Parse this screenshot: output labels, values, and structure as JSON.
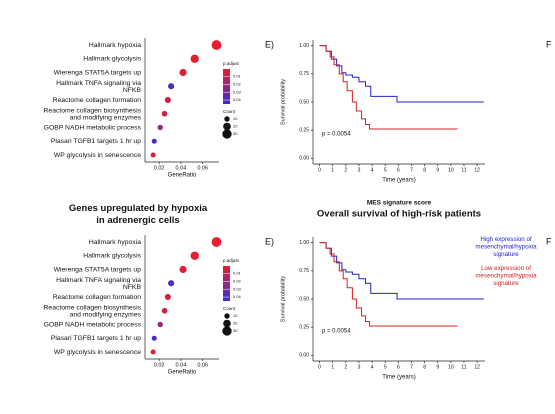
{
  "chart_data": [
    {
      "type": "dot",
      "categories": [
        "Hallmark hypoxia",
        "Hallmark glycolysis",
        "Wierenga STAT5A targets up",
        "Hallmark TNFA signaling via\nNFKB",
        "Reactome collagen formation",
        "Reactome collagen biosynthesis\nand modifying enzymes",
        "GOBP NADH metabolic process",
        "Plasari TGFB1 targets 1 hr up",
        "WP glycolysis in senescence"
      ],
      "values": [
        0.0727,
        0.0527,
        0.042,
        0.031,
        0.028,
        0.025,
        0.021,
        0.0155,
        0.0145
      ],
      "sizes": [
        33,
        24,
        18,
        13,
        13,
        11,
        10,
        9,
        9
      ],
      "padj": [
        0.001,
        0.002,
        0.004,
        0.04,
        0.006,
        0.007,
        0.022,
        0.044,
        0.004
      ],
      "xlabel": "GeneRatio",
      "xlim": [
        0.007,
        0.075
      ],
      "xticks": [
        0.02,
        0.04,
        0.06
      ],
      "color_legend": {
        "title": "p.adjust",
        "lim": [
          0.0005,
          0.045
        ],
        "ticks": [
          0.01,
          0.02,
          0.03,
          0.04
        ],
        "colors": [
          "#e8202a",
          "#3a2bd6"
        ]
      },
      "size_legend": {
        "title": "Count",
        "ticks": [
          10,
          20,
          30
        ]
      }
    },
    {
      "type": "km",
      "panel_label": "E)",
      "side_label": "F",
      "series": [
        {
          "color": "#2323c8",
          "x": [
            0,
            0.5,
            0.9,
            1.3,
            1.7,
            2.0,
            2.5,
            3.0,
            3.5,
            3.9,
            5.9,
            12.5
          ],
          "values": [
            1,
            0.95,
            0.88,
            0.82,
            0.76,
            0.74,
            0.72,
            0.68,
            0.64,
            0.55,
            0.5,
            0.5
          ]
        },
        {
          "color": "#d42020",
          "x": [
            0,
            0.5,
            0.8,
            1.1,
            1.5,
            1.8,
            2.1,
            2.5,
            2.8,
            3.2,
            3.5,
            3.8,
            10.5
          ],
          "values": [
            1,
            0.95,
            0.9,
            0.83,
            0.75,
            0.68,
            0.6,
            0.5,
            0.42,
            0.35,
            0.3,
            0.26,
            0.26
          ]
        }
      ],
      "xlabel": "Time (years)",
      "ylabel": "Survival probability",
      "annotation": "p = 0.0054",
      "xlim": [
        -0.5,
        12.6
      ],
      "xticks": [
        0,
        1,
        2,
        3,
        4,
        5,
        6,
        7,
        8,
        9,
        10,
        11,
        12
      ],
      "ylim": [
        -0.05,
        1.05
      ],
      "yticks": [
        {
          "value": 0,
          "label": "0.00"
        },
        0.25,
        {
          "value": 0.5,
          "label": "0.50"
        },
        0.75,
        {
          "value": 1,
          "label": "1.00"
        }
      ]
    },
    {
      "type": "dot",
      "title": "Genes upregulated by hypoxia\nin adrenergic cells",
      "categories": [
        "Hallmark hypoxia",
        "Hallmark glycolysis",
        "Wierenga STAT5A targets up",
        "Hallmark TNFA signaling via\nNFKB",
        "Reactome collagen formation",
        "Reactome collagen biosynthesis\nand modifying enzymes",
        "GOBP NADH metabolic process",
        "Plasari TGFB1 targets 1 hr up",
        "WP glycolysis in senescence"
      ],
      "values": [
        0.0727,
        0.0527,
        0.042,
        0.031,
        0.028,
        0.025,
        0.021,
        0.0155,
        0.0145
      ],
      "sizes": [
        33,
        24,
        18,
        13,
        13,
        11,
        10,
        9,
        9
      ],
      "padj": [
        0.001,
        0.002,
        0.004,
        0.04,
        0.006,
        0.007,
        0.022,
        0.044,
        0.004
      ],
      "xlabel": "GeneRatio",
      "xlim": [
        0.007,
        0.075
      ],
      "xticks": [
        0.02,
        0.04,
        0.06
      ],
      "color_legend": {
        "title": "p.adjust",
        "lim": [
          0.0005,
          0.045
        ],
        "ticks": [
          0.01,
          0.02,
          0.03,
          0.04
        ],
        "colors": [
          "#e8202a",
          "#3a2bd6"
        ]
      },
      "size_legend": {
        "title": "Count",
        "ticks": [
          10,
          20,
          30
        ]
      }
    },
    {
      "type": "km",
      "panel_label": "E)",
      "side_label": "F",
      "subtitle": "MES signature score",
      "title": "Overall survival of high-risk patients",
      "series": [
        {
          "name": "High expression of\nmesenchymal/hypoxia\nsignature",
          "color": "#2323c8",
          "x": [
            0,
            0.5,
            0.9,
            1.3,
            1.7,
            2.0,
            2.5,
            3.0,
            3.5,
            3.9,
            5.9,
            12.5
          ],
          "values": [
            1,
            0.95,
            0.88,
            0.82,
            0.76,
            0.74,
            0.72,
            0.68,
            0.64,
            0.55,
            0.5,
            0.5
          ]
        },
        {
          "name": "Low expression of\nmesenchymal/hypoxia\nsignature",
          "color": "#d42020",
          "x": [
            0,
            0.5,
            0.8,
            1.1,
            1.5,
            1.8,
            2.1,
            2.5,
            2.8,
            3.2,
            3.5,
            3.8,
            10.5
          ],
          "values": [
            1,
            0.95,
            0.9,
            0.83,
            0.75,
            0.68,
            0.6,
            0.5,
            0.42,
            0.35,
            0.3,
            0.26,
            0.26
          ]
        }
      ],
      "xlabel": "Time (years)",
      "ylabel": "Survival probability",
      "annotation": "p = 0.0054",
      "xlim": [
        -0.5,
        12.6
      ],
      "xticks": [
        0,
        1,
        2,
        3,
        4,
        5,
        6,
        7,
        8,
        9,
        10,
        11,
        12
      ],
      "ylim": [
        -0.05,
        1.05
      ],
      "yticks": [
        {
          "value": 0,
          "label": "0.00"
        },
        0.25,
        {
          "value": 0.5,
          "label": "0.50"
        },
        0.75,
        {
          "value": 1,
          "label": "1.00"
        }
      ]
    }
  ]
}
